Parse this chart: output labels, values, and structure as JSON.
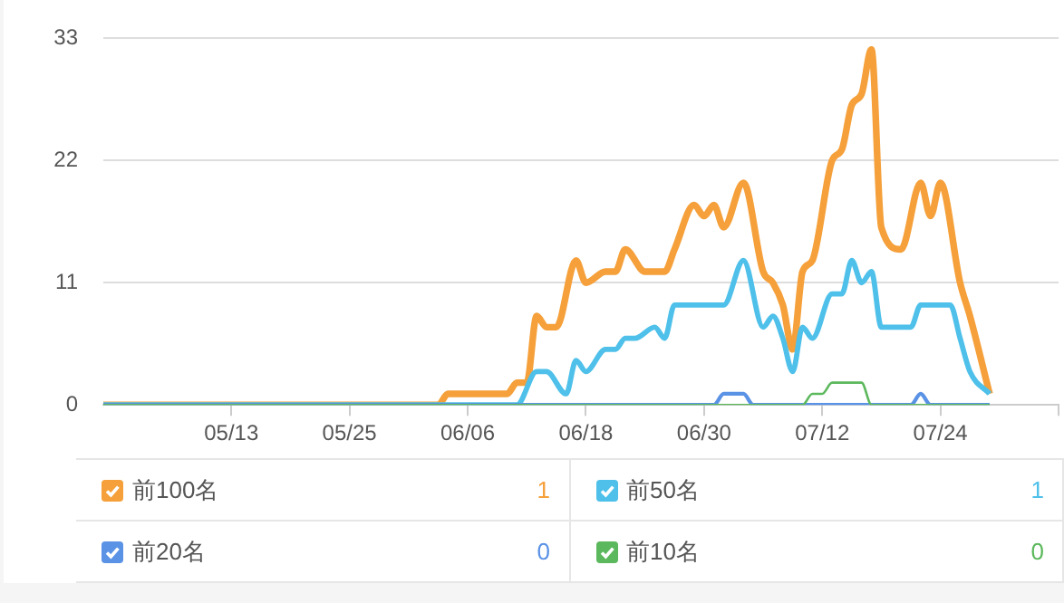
{
  "chart_data": {
    "type": "line",
    "legend": "bottom",
    "grid": "y",
    "marker": "none",
    "line_style": "solid",
    "xlim": [
      "--04-30",
      "--08-05"
    ],
    "xticks": [
      {
        "value": "--05-13",
        "label": "05/13"
      },
      {
        "value": "--05-25",
        "label": "05/25"
      },
      {
        "value": "--06-06",
        "label": "06/06"
      },
      {
        "value": "--06-18",
        "label": "06/18"
      },
      {
        "value": "--06-30",
        "label": "06/30"
      },
      {
        "value": "--07-12",
        "label": "07/12"
      },
      {
        "value": "--07-24",
        "label": "07/24"
      },
      {
        "value": "--08-05",
        "label": null
      }
    ],
    "ylim": [
      0,
      33
    ],
    "yticks": [
      0,
      11,
      22,
      33
    ],
    "series": [
      {
        "name": "前100名",
        "color": "#f5a03a",
        "x": [
          "--04-30",
          "--06-03",
          "--06-04",
          "--06-10",
          "--06-11",
          "--06-12",
          "--06-13",
          "--06-14",
          "--06-15",
          "--06-17",
          "--06-18",
          "--06-20",
          "--06-21",
          "--06-22",
          "--06-24",
          "--06-26",
          "--06-27",
          "--06-29",
          "--06-30",
          "--07-01",
          "--07-02",
          "--07-04",
          "--07-06",
          "--07-07",
          "--07-08",
          "--07-09",
          "--07-10",
          "--07-11",
          "--07-13",
          "--07-14",
          "--07-15",
          "--07-16",
          "--07-17",
          "--07-18",
          "--07-20",
          "--07-22",
          "--07-23",
          "--07-24",
          "--07-26",
          "--07-27",
          "--07-29"
        ],
        "values": [
          0,
          0,
          1,
          1,
          2,
          2,
          8,
          7,
          7,
          13,
          11,
          12,
          12,
          14,
          12,
          12,
          14,
          18,
          17,
          18,
          16,
          20,
          12,
          11,
          9,
          5,
          12,
          13,
          22,
          23,
          27,
          28,
          32,
          16,
          14,
          20,
          17,
          20,
          11,
          8,
          1
        ]
      },
      {
        "name": "前50名",
        "color": "#4ec0ea",
        "x": [
          "--04-30",
          "--06-11",
          "--06-13",
          "--06-14",
          "--06-16",
          "--06-17",
          "--06-18",
          "--06-20",
          "--06-21",
          "--06-22",
          "--06-23",
          "--06-25",
          "--06-26",
          "--06-27",
          "--07-02",
          "--07-04",
          "--07-06",
          "--07-07",
          "--07-08",
          "--07-09",
          "--07-10",
          "--07-11",
          "--07-13",
          "--07-14",
          "--07-15",
          "--07-16",
          "--07-17",
          "--07-18",
          "--07-21",
          "--07-22",
          "--07-25",
          "--07-26",
          "--07-27",
          "--07-29"
        ],
        "values": [
          0,
          0,
          3,
          3,
          1,
          4,
          3,
          5,
          5,
          6,
          6,
          7,
          6,
          9,
          9,
          13,
          7,
          8,
          6,
          3,
          7,
          6,
          10,
          10,
          13,
          11,
          12,
          7,
          7,
          9,
          9,
          6,
          3,
          1
        ]
      },
      {
        "name": "前20名",
        "color": "#5a92e6",
        "x": [
          "--04-30",
          "--07-01",
          "--07-02",
          "--07-04",
          "--07-05",
          "--07-21",
          "--07-22",
          "--07-23",
          "--07-29"
        ],
        "values": [
          0,
          0,
          1,
          1,
          0,
          0,
          1,
          0,
          0
        ]
      },
      {
        "name": "前10名",
        "color": "#5cb85c",
        "x": [
          "--04-30",
          "--07-10",
          "--07-11",
          "--07-12",
          "--07-13",
          "--07-16",
          "--07-17",
          "--07-29"
        ],
        "values": [
          0,
          0,
          1,
          1,
          2,
          2,
          0,
          0
        ]
      }
    ],
    "annotations": [
      "1",
      "1",
      "0",
      "0"
    ]
  }
}
